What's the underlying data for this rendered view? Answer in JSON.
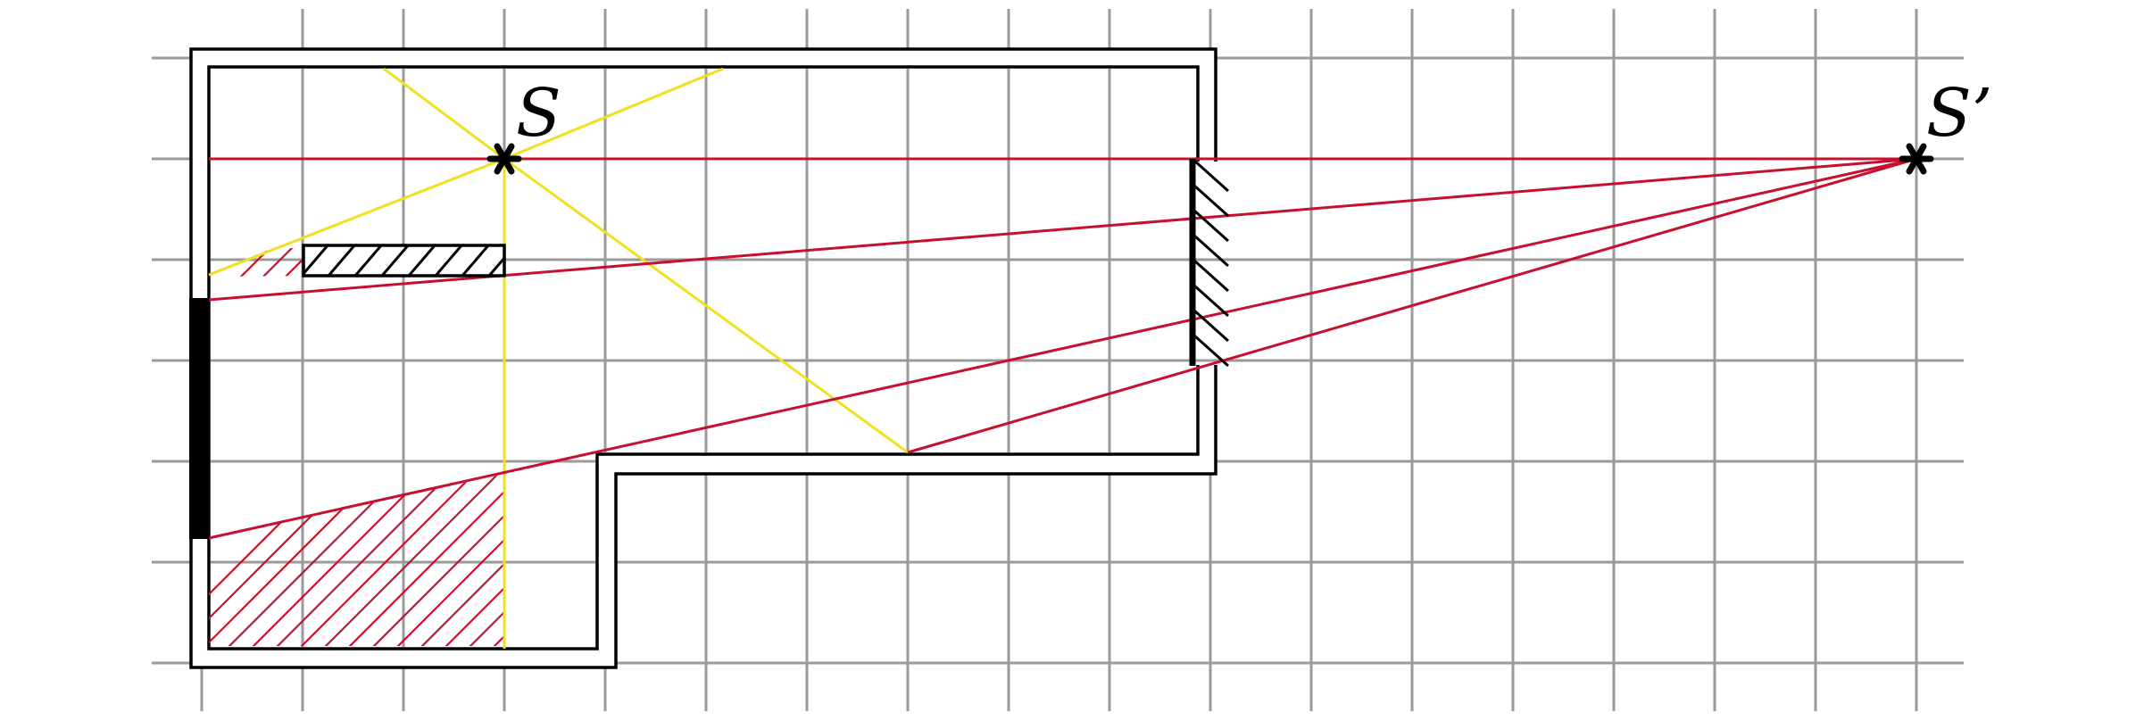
{
  "labels": {
    "source": "S",
    "image": "S’"
  },
  "colors": {
    "grid": "#9a9a9a",
    "wall": "#000000",
    "shadow_ray": "#c8102e",
    "light_ray": "#f0e020"
  },
  "elements": {
    "mirror": "mirror-with-hatch",
    "obstacle": "hatched-obstacle-bar",
    "screen": "black-screen-on-left-wall"
  }
}
